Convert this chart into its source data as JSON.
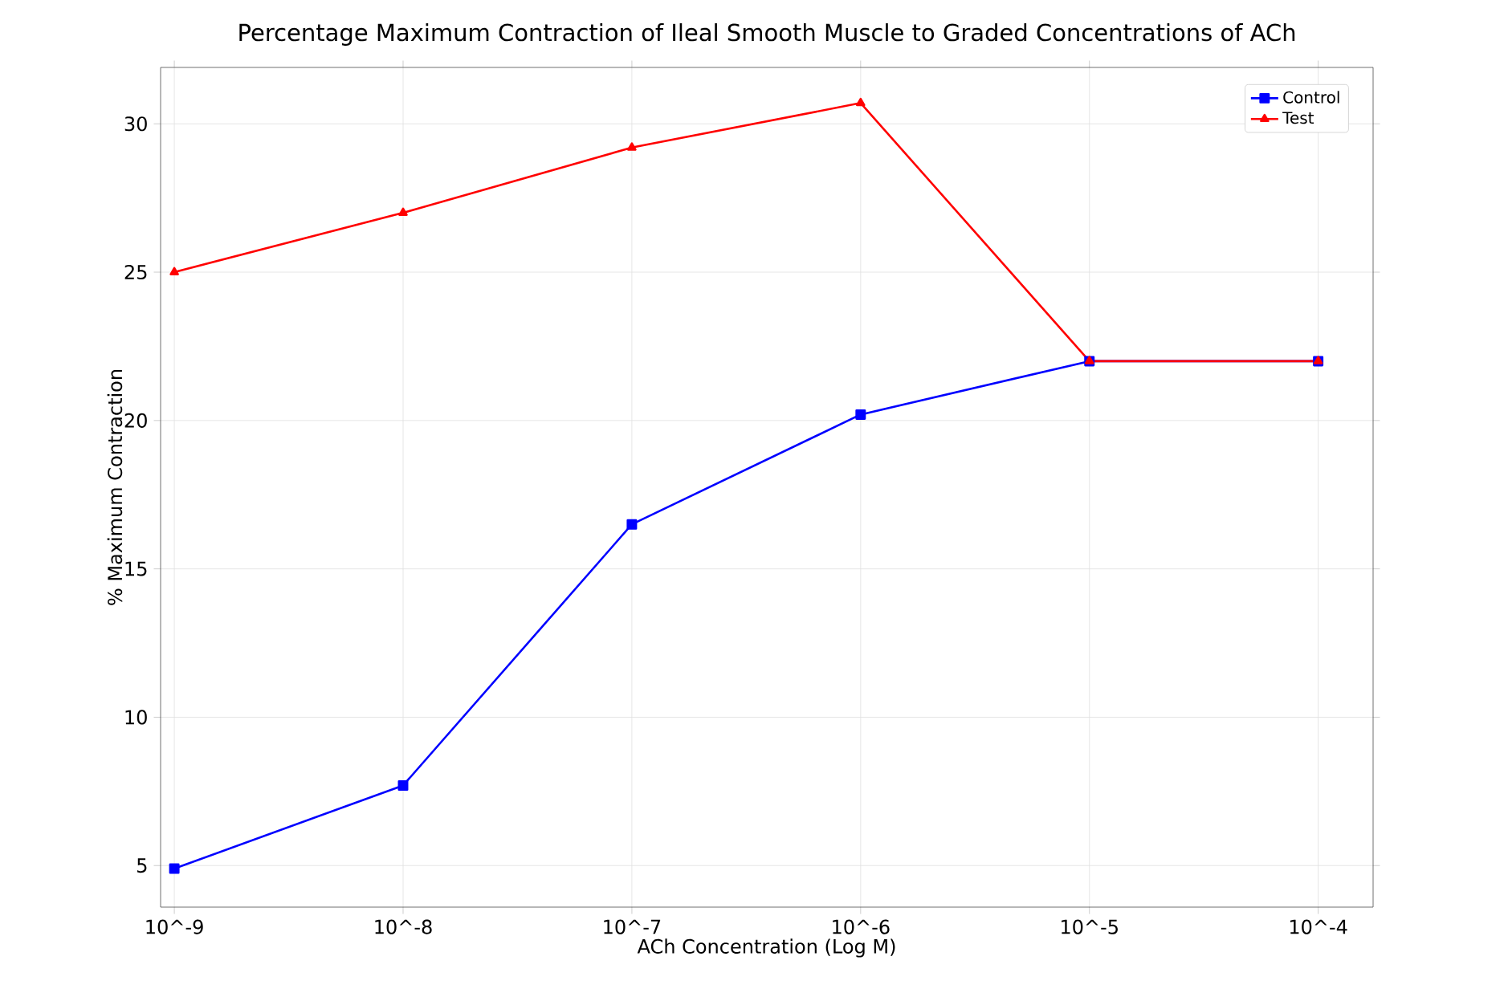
{
  "chart_data": {
    "type": "line",
    "title": "Percentage Maximum Contraction of Ileal Smooth Muscle to Graded Concentrations of ACh",
    "xlabel": "ACh Concentration (Log M)",
    "ylabel": "% Maximum Contraction",
    "categories": [
      "10^-9",
      "10^-8",
      "10^-7",
      "10^-6",
      "10^-5",
      "10^-4"
    ],
    "series": [
      {
        "name": "Control",
        "color": "#0000ff",
        "marker": "square",
        "values": [
          4.9,
          7.7,
          16.5,
          20.2,
          22.0,
          22.0
        ]
      },
      {
        "name": "Test",
        "color": "#ff0000",
        "marker": "triangle",
        "values": [
          25.0,
          27.0,
          29.2,
          30.7,
          22.0,
          22.0
        ]
      }
    ],
    "ylim": [
      3.6,
      31.9
    ],
    "yticks": [
      5,
      10,
      15,
      20,
      25,
      30
    ],
    "grid": true,
    "legend": "top right",
    "line_style": "solid"
  }
}
